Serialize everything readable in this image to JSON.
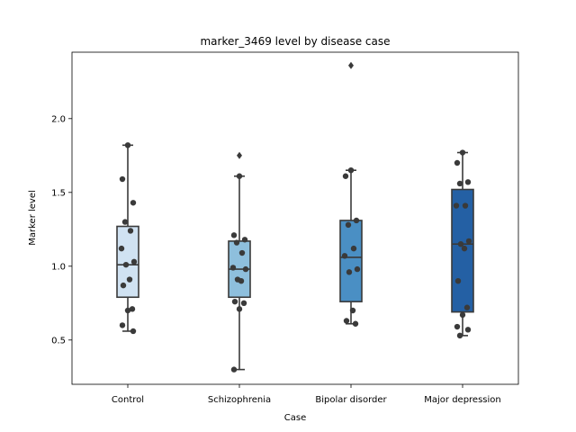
{
  "chart_data": {
    "type": "box",
    "title": "marker_3469 level by disease case",
    "xlabel": "Case",
    "ylabel": "Marker level",
    "ylim": [
      0.2,
      2.45
    ],
    "yticks": [
      0.5,
      1.0,
      1.5,
      2.0
    ],
    "ytick_labels": [
      "0.5",
      "1.0",
      "1.5",
      "2.0"
    ],
    "grid": false,
    "categories": [
      "Control",
      "Schizophrenia",
      "Bipolar disorder",
      "Major depression"
    ],
    "colors": [
      "#d0e2f2",
      "#8ebfdd",
      "#4a8fc4",
      "#2460a4"
    ],
    "boxes": [
      {
        "q1": 0.79,
        "median": 1.01,
        "q3": 1.27,
        "whisker_low": 0.56,
        "whisker_high": 1.82,
        "outliers": []
      },
      {
        "q1": 0.79,
        "median": 0.98,
        "q3": 1.17,
        "whisker_low": 0.3,
        "whisker_high": 1.61,
        "outliers": [
          1.75
        ]
      },
      {
        "q1": 0.76,
        "median": 1.06,
        "q3": 1.31,
        "whisker_low": 0.61,
        "whisker_high": 1.65,
        "outliers": [
          2.36
        ]
      },
      {
        "q1": 0.69,
        "median": 1.15,
        "q3": 1.52,
        "whisker_low": 0.53,
        "whisker_high": 1.77,
        "outliers": []
      }
    ],
    "points": [
      [
        1.82,
        1.59,
        1.43,
        1.3,
        1.24,
        1.12,
        1.03,
        1.01,
        0.91,
        0.87,
        0.71,
        0.7,
        0.6,
        0.56
      ],
      [
        1.61,
        1.21,
        1.18,
        1.16,
        1.09,
        0.99,
        0.98,
        0.91,
        0.9,
        0.76,
        0.75,
        0.71,
        0.3
      ],
      [
        1.65,
        1.61,
        1.31,
        1.28,
        1.12,
        1.07,
        0.98,
        0.96,
        0.7,
        0.63,
        0.61
      ],
      [
        1.77,
        1.7,
        1.57,
        1.56,
        1.41,
        1.41,
        1.17,
        1.15,
        1.12,
        0.9,
        0.72,
        0.67,
        0.59,
        0.57,
        0.53
      ]
    ]
  }
}
